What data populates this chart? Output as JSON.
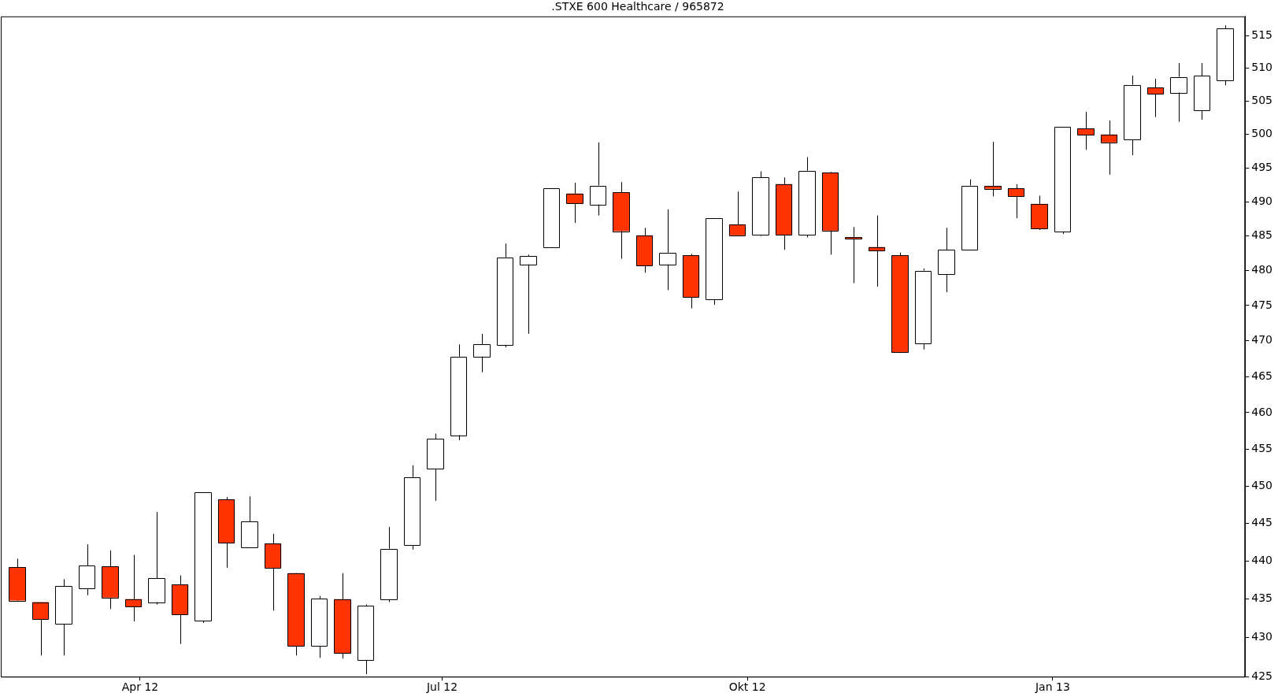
{
  "chart_data": {
    "type": "candlestick",
    "title": ".STXE 600 Healthcare / 965872",
    "x": [
      "2012-02-24",
      "2012-03-02",
      "2012-03-09",
      "2012-03-16",
      "2012-03-23",
      "2012-03-30",
      "2012-04-06",
      "2012-04-13",
      "2012-04-20",
      "2012-04-27",
      "2012-05-04",
      "2012-05-11",
      "2012-05-18",
      "2012-05-25",
      "2012-06-01",
      "2012-06-08",
      "2012-06-15",
      "2012-06-22",
      "2012-06-29",
      "2012-07-06",
      "2012-07-13",
      "2012-07-20",
      "2012-07-27",
      "2012-08-03",
      "2012-08-10",
      "2012-08-17",
      "2012-08-24",
      "2012-08-31",
      "2012-09-07",
      "2012-09-14",
      "2012-09-21",
      "2012-09-28",
      "2012-10-05",
      "2012-10-12",
      "2012-10-19",
      "2012-10-26",
      "2012-11-02",
      "2012-11-09",
      "2012-11-16",
      "2012-11-23",
      "2012-11-30",
      "2012-12-07",
      "2012-12-14",
      "2012-12-21",
      "2012-12-28",
      "2013-01-04",
      "2013-01-11",
      "2013-01-18",
      "2013-01-25",
      "2013-02-01",
      "2013-02-08",
      "2013-02-15",
      "2013-02-22"
    ],
    "ohlc": [
      [
        439.2,
        440.3,
        434.7,
        434.8
      ],
      [
        434.6,
        434.6,
        427.7,
        432.4
      ],
      [
        431.8,
        437.6,
        427.7,
        436.7
      ],
      [
        436.4,
        442.2,
        435.5,
        439.4
      ],
      [
        439.3,
        441.4,
        433.7,
        435.2
      ],
      [
        435.0,
        440.8,
        432.1,
        434.0
      ],
      [
        434.6,
        446.5,
        434.3,
        437.7
      ],
      [
        436.9,
        438.1,
        429.2,
        433.0
      ],
      [
        432.2,
        449.2,
        431.9,
        449.2
      ],
      [
        448.2,
        448.5,
        439.1,
        442.4
      ],
      [
        441.8,
        448.6,
        441.7,
        445.2
      ],
      [
        442.3,
        443.6,
        433.5,
        439.1
      ],
      [
        438.4,
        438.4,
        427.7,
        428.9
      ],
      [
        428.9,
        435.4,
        427.4,
        435.1
      ],
      [
        435.0,
        438.4,
        427.3,
        428.0
      ],
      [
        427.1,
        434.3,
        425.3,
        434.1
      ],
      [
        435.0,
        444.5,
        434.6,
        441.6
      ],
      [
        442.1,
        452.8,
        441.5,
        451.2
      ],
      [
        452.3,
        457.1,
        448.0,
        456.4
      ],
      [
        456.9,
        469.5,
        456.2,
        467.8
      ],
      [
        467.8,
        471.0,
        465.6,
        469.5
      ],
      [
        469.4,
        483.9,
        469.1,
        481.9
      ],
      [
        480.9,
        482.3,
        471.0,
        482.1
      ],
      [
        483.4,
        492.0,
        483.3,
        492.0
      ],
      [
        491.2,
        492.8,
        486.9,
        489.8
      ],
      [
        489.6,
        498.8,
        488.0,
        492.4
      ],
      [
        491.4,
        492.9,
        481.7,
        485.7
      ],
      [
        485.1,
        486.2,
        479.7,
        480.7
      ],
      [
        480.9,
        488.9,
        477.2,
        482.6
      ],
      [
        482.2,
        482.4,
        474.6,
        476.2
      ],
      [
        475.9,
        487.6,
        475.1,
        487.6
      ],
      [
        486.7,
        491.5,
        485.0,
        485.1
      ],
      [
        485.2,
        494.5,
        485.0,
        493.6
      ],
      [
        492.6,
        493.6,
        483.0,
        485.2
      ],
      [
        485.2,
        496.6,
        484.8,
        494.6
      ],
      [
        494.3,
        494.4,
        482.3,
        485.8
      ],
      [
        484.8,
        486.3,
        478.2,
        484.6
      ],
      [
        483.4,
        488.0,
        477.7,
        482.9
      ],
      [
        482.2,
        482.6,
        468.3,
        468.4
      ],
      [
        469.6,
        480.3,
        468.8,
        480.0
      ],
      [
        479.5,
        486.2,
        476.9,
        483.0
      ],
      [
        483.0,
        493.3,
        482.9,
        492.4
      ],
      [
        492.3,
        498.9,
        490.8,
        491.9
      ],
      [
        492.0,
        492.6,
        487.6,
        490.8
      ],
      [
        489.7,
        490.9,
        485.9,
        486.1
      ],
      [
        485.6,
        501.1,
        485.3,
        501.1
      ],
      [
        500.9,
        503.4,
        497.7,
        499.9
      ],
      [
        500.0,
        502.1,
        494.0,
        498.8
      ],
      [
        499.2,
        508.9,
        496.9,
        507.5
      ],
      [
        507.1,
        508.4,
        502.6,
        506.1
      ],
      [
        506.3,
        510.8,
        501.9,
        508.7
      ],
      [
        503.6,
        510.8,
        502.2,
        508.9
      ],
      [
        508.2,
        516.6,
        507.4,
        516.1
      ]
    ],
    "colors": [
      "#ff3300",
      "#ff3300",
      "#ffffff",
      "#ffffff",
      "#ff3300",
      "#ff3300",
      "#ffffff",
      "#ff3300",
      "#ffffff",
      "#ff3300",
      "#ffffff",
      "#ff3300",
      "#ff3300",
      "#ffffff",
      "#ff3300",
      "#ffffff",
      "#ffffff",
      "#ffffff",
      "#ffffff",
      "#ffffff",
      "#ffffff",
      "#ffffff",
      "#ffffff",
      "#ffffff",
      "#ff3300",
      "#ffffff",
      "#ff3300",
      "#ff3300",
      "#ffffff",
      "#ff3300",
      "#ffffff",
      "#ff3300",
      "#ffffff",
      "#ff3300",
      "#ffffff",
      "#ff3300",
      "#ff3300",
      "#ff3300",
      "#ff3300",
      "#ffffff",
      "#ffffff",
      "#ffffff",
      "#ff3300",
      "#ff3300",
      "#ff3300",
      "#ffffff",
      "#ff3300",
      "#ff3300",
      "#ffffff",
      "#ff3300",
      "#ffffff",
      "#ffffff",
      "#ffffff"
    ],
    "xlim": [
      "2012-02-19",
      "2013-02-28"
    ],
    "xticks": [
      {
        "value": "2012-04-01",
        "label": "Apr 12"
      },
      {
        "value": "2012-07-01",
        "label": "Jul 12"
      },
      {
        "value": "2012-10-01",
        "label": "Okt 12"
      },
      {
        "value": "2013-01-01",
        "label": "Jan 13"
      }
    ],
    "ylim": [
      425,
      518
    ],
    "yticks": [
      425,
      430,
      435,
      440,
      445,
      450,
      455,
      460,
      465,
      470,
      475,
      480,
      485,
      490,
      495,
      500,
      505,
      510,
      515
    ],
    "log": true
  }
}
